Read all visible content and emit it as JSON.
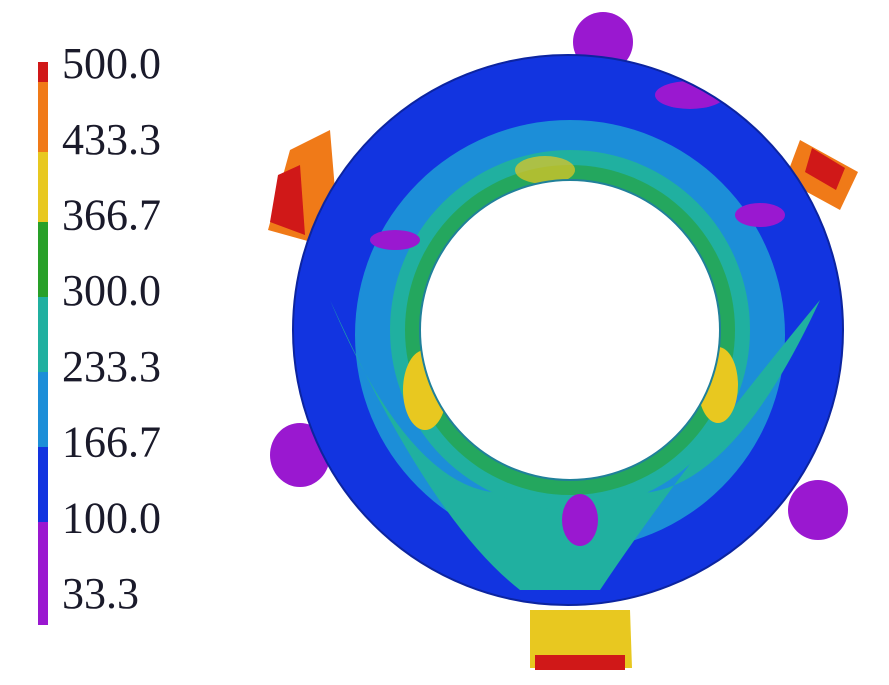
{
  "legend": {
    "labels": [
      "500.0",
      "433.3",
      "366.7",
      "300.0",
      "233.3",
      "166.7",
      "100.0",
      "33.3"
    ]
  }
}
